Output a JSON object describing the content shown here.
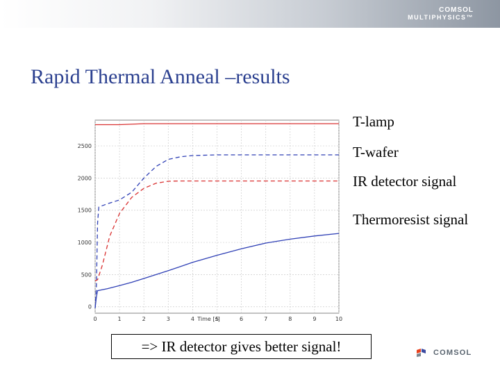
{
  "header": {
    "brand_line1": "COMSOL",
    "brand_line2": "MULTIPHYSICS™"
  },
  "slide": {
    "title": "Rapid Thermal Anneal –results"
  },
  "legend": [
    "T-lamp",
    "T-wafer",
    "IR detector signal",
    "Thermoresist signal"
  ],
  "callout": "=> IR detector gives better signal!",
  "footer": {
    "brand": "COMSOL"
  },
  "chart_data": {
    "type": "line",
    "xlabel": "Time [s]",
    "ylabel": "",
    "xlim": [
      0,
      10
    ],
    "ylim": [
      -100,
      2900
    ],
    "xticks": [
      0,
      1,
      2,
      3,
      4,
      5,
      6,
      7,
      8,
      9,
      10
    ],
    "yticks": [
      0,
      500,
      1000,
      1500,
      2000,
      2500
    ],
    "grid": true,
    "series": [
      {
        "color": "#d93030",
        "dash": "solid",
        "points": [
          [
            0,
            2830
          ],
          [
            0.05,
            2830
          ],
          [
            0.1,
            2830
          ],
          [
            0.15,
            2830
          ],
          [
            1,
            2830
          ],
          [
            2,
            2845
          ],
          [
            3,
            2845
          ],
          [
            4,
            2845
          ],
          [
            5,
            2845
          ],
          [
            6,
            2845
          ],
          [
            7,
            2845
          ],
          [
            8,
            2845
          ],
          [
            9,
            2845
          ],
          [
            10,
            2845
          ]
        ]
      },
      {
        "color": "#2e3fb5",
        "dash": "dashed",
        "points": [
          [
            0,
            -20
          ],
          [
            0.05,
            300
          ],
          [
            0.1,
            1300
          ],
          [
            0.15,
            1550
          ],
          [
            0.5,
            1600
          ],
          [
            1,
            1660
          ],
          [
            1.5,
            1780
          ],
          [
            2,
            2000
          ],
          [
            2.5,
            2180
          ],
          [
            3,
            2290
          ],
          [
            3.5,
            2330
          ],
          [
            4,
            2350
          ],
          [
            5,
            2360
          ],
          [
            6,
            2360
          ],
          [
            7,
            2360
          ],
          [
            8,
            2360
          ],
          [
            9,
            2360
          ],
          [
            10,
            2360
          ]
        ]
      },
      {
        "color": "#d93030",
        "dash": "dashed",
        "points": [
          [
            0,
            400
          ],
          [
            0.1,
            420
          ],
          [
            0.3,
            650
          ],
          [
            0.6,
            1100
          ],
          [
            1,
            1450
          ],
          [
            1.5,
            1700
          ],
          [
            2,
            1840
          ],
          [
            2.5,
            1920
          ],
          [
            3,
            1950
          ],
          [
            3.5,
            1955
          ],
          [
            4,
            1955
          ],
          [
            5,
            1955
          ],
          [
            6,
            1955
          ],
          [
            7,
            1955
          ],
          [
            8,
            1955
          ],
          [
            9,
            1955
          ],
          [
            10,
            1955
          ]
        ]
      },
      {
        "color": "#2e3fb5",
        "dash": "solid",
        "points": [
          [
            0,
            -20
          ],
          [
            0.05,
            150
          ],
          [
            0.1,
            250
          ],
          [
            0.5,
            280
          ],
          [
            1,
            330
          ],
          [
            1.5,
            380
          ],
          [
            2,
            440
          ],
          [
            3,
            560
          ],
          [
            4,
            690
          ],
          [
            5,
            800
          ],
          [
            6,
            900
          ],
          [
            7,
            990
          ],
          [
            8,
            1050
          ],
          [
            9,
            1100
          ],
          [
            10,
            1140
          ]
        ]
      }
    ]
  }
}
